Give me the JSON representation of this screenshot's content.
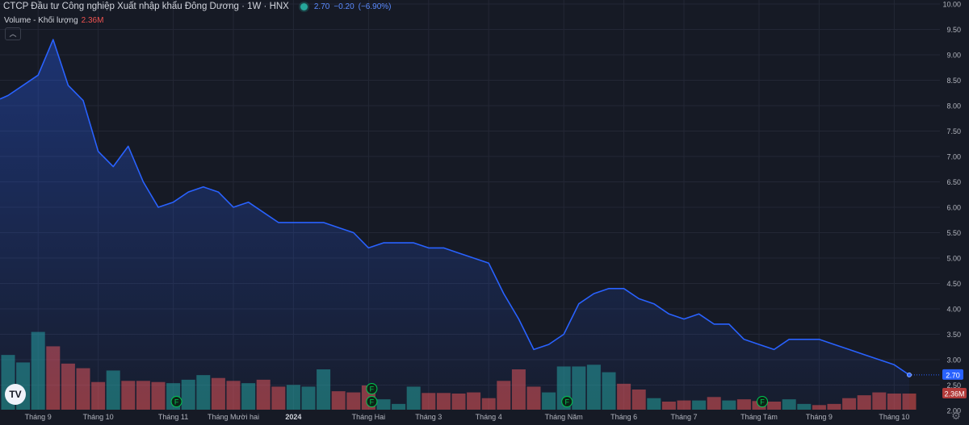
{
  "header": {
    "title": "CTCP Đầu tư Công nghiệp Xuất nhập khẩu Đông Dương · 1W · HNX",
    "status_color": "#26a69a",
    "price": "2.70",
    "change": "−0.20",
    "change_pct": "(−6.90%)",
    "volume_label": "Volume - Khối lượng",
    "volume_value": "2.36M",
    "collapse_icon": "chevron-up-icon"
  },
  "logo_text": "TV",
  "settings_icon": "gear-icon",
  "chart_data": {
    "type": "area",
    "y_ticks": [
      "10.00",
      "9.50",
      "9.00",
      "8.50",
      "8.00",
      "7.50",
      "7.00",
      "6.50",
      "6.00",
      "5.50",
      "5.00",
      "4.50",
      "4.00",
      "3.50",
      "3.00",
      "2.50",
      "2.00"
    ],
    "ylim": [
      2.0,
      10.0
    ],
    "x_tick_labels": [
      "Tháng 9",
      "Tháng 10",
      "Tháng 11",
      "Tháng Mười hai",
      "2024",
      "Tháng Hai",
      "Tháng 3",
      "Tháng 4",
      "Tháng Năm",
      "Tháng 6",
      "Tháng 7",
      "Tháng Tám",
      "Tháng 9",
      "Tháng 10"
    ],
    "x_tick_index": [
      2,
      6,
      11,
      15,
      19,
      24,
      28,
      32,
      37,
      41,
      45,
      50,
      54,
      59
    ],
    "price": [
      8.2,
      8.4,
      8.6,
      9.3,
      8.4,
      8.1,
      7.1,
      6.8,
      7.2,
      6.5,
      6.0,
      6.1,
      6.3,
      6.4,
      6.3,
      6.0,
      6.1,
      5.9,
      5.7,
      5.7,
      5.7,
      5.7,
      5.6,
      5.5,
      5.2,
      5.3,
      5.3,
      5.3,
      5.2,
      5.2,
      5.1,
      5.0,
      4.9,
      4.3,
      3.8,
      3.2,
      3.3,
      3.5,
      4.1,
      4.3,
      4.4,
      4.4,
      4.2,
      4.1,
      3.9,
      3.8,
      3.9,
      3.7,
      3.7,
      3.4,
      3.3,
      3.2,
      3.4,
      3.4,
      3.4,
      3.3,
      3.2,
      3.1,
      3.0,
      2.9,
      2.7
    ],
    "volume": [
      0.95,
      0.82,
      1.35,
      1.1,
      0.8,
      0.72,
      0.48,
      0.68,
      0.5,
      0.5,
      0.48,
      0.46,
      0.52,
      0.6,
      0.55,
      0.5,
      0.46,
      0.52,
      0.4,
      0.43,
      0.4,
      0.7,
      0.32,
      0.3,
      0.42,
      0.18,
      0.1,
      0.4,
      0.29,
      0.29,
      0.28,
      0.3,
      0.2,
      0.5,
      0.7,
      0.4,
      0.3,
      0.75,
      0.75,
      0.78,
      0.65,
      0.45,
      0.35,
      0.2,
      0.14,
      0.16,
      0.16,
      0.22,
      0.16,
      0.18,
      0.15,
      0.14,
      0.18,
      0.1,
      0.08,
      0.1,
      0.2,
      0.25,
      0.3,
      0.28,
      0.28
    ],
    "volume_up": [
      true,
      true,
      true,
      false,
      false,
      false,
      false,
      true,
      false,
      false,
      false,
      true,
      true,
      true,
      false,
      false,
      true,
      false,
      false,
      true,
      true,
      true,
      false,
      false,
      false,
      true,
      true,
      true,
      false,
      false,
      false,
      false,
      false,
      false,
      false,
      false,
      true,
      true,
      true,
      true,
      true,
      false,
      false,
      true,
      false,
      false,
      true,
      false,
      true,
      false,
      false,
      false,
      true,
      true,
      false,
      false,
      false,
      false,
      false,
      false,
      false
    ],
    "dividend_markers": [
      11,
      24,
      24,
      37,
      50
    ],
    "last_price_label": "2.70",
    "last_volume_label": "2.36M",
    "line_color": "#2962ff",
    "up_color": "#26a69a",
    "down_color": "#ef5350",
    "marker_label": "F",
    "marker_color": "#00c853",
    "grid": true
  }
}
